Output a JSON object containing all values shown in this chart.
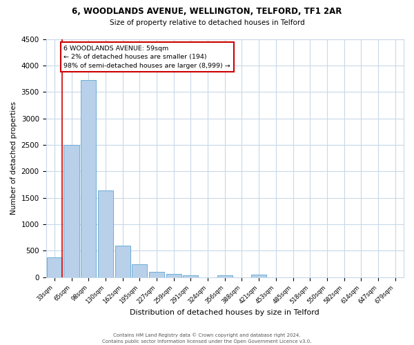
{
  "title": "6, WOODLANDS AVENUE, WELLINGTON, TELFORD, TF1 2AR",
  "subtitle": "Size of property relative to detached houses in Telford",
  "xlabel": "Distribution of detached houses by size in Telford",
  "ylabel": "Number of detached properties",
  "bar_labels": [
    "33sqm",
    "65sqm",
    "98sqm",
    "130sqm",
    "162sqm",
    "195sqm",
    "227sqm",
    "259sqm",
    "291sqm",
    "324sqm",
    "356sqm",
    "388sqm",
    "421sqm",
    "453sqm",
    "485sqm",
    "518sqm",
    "550sqm",
    "582sqm",
    "614sqm",
    "647sqm",
    "679sqm"
  ],
  "bar_values": [
    380,
    2500,
    3720,
    1640,
    600,
    240,
    100,
    60,
    40,
    0,
    40,
    0,
    50,
    0,
    0,
    0,
    0,
    0,
    0,
    0,
    0
  ],
  "bar_color": "#b8d0ea",
  "bar_edge_color": "#6baed6",
  "highlight_color": "#cc0000",
  "annotation_title": "6 WOODLANDS AVENUE: 59sqm",
  "annotation_line1": "← 2% of detached houses are smaller (194)",
  "annotation_line2": "98% of semi-detached houses are larger (8,999) →",
  "annotation_box_color": "#cc0000",
  "ylim": [
    0,
    4500
  ],
  "yticks": [
    0,
    500,
    1000,
    1500,
    2000,
    2500,
    3000,
    3500,
    4000,
    4500
  ],
  "footer_line1": "Contains HM Land Registry data © Crown copyright and database right 2024.",
  "footer_line2": "Contains public sector information licensed under the Open Government Licence v3.0.",
  "bg_color": "#ffffff",
  "grid_color": "#c8d8e8"
}
